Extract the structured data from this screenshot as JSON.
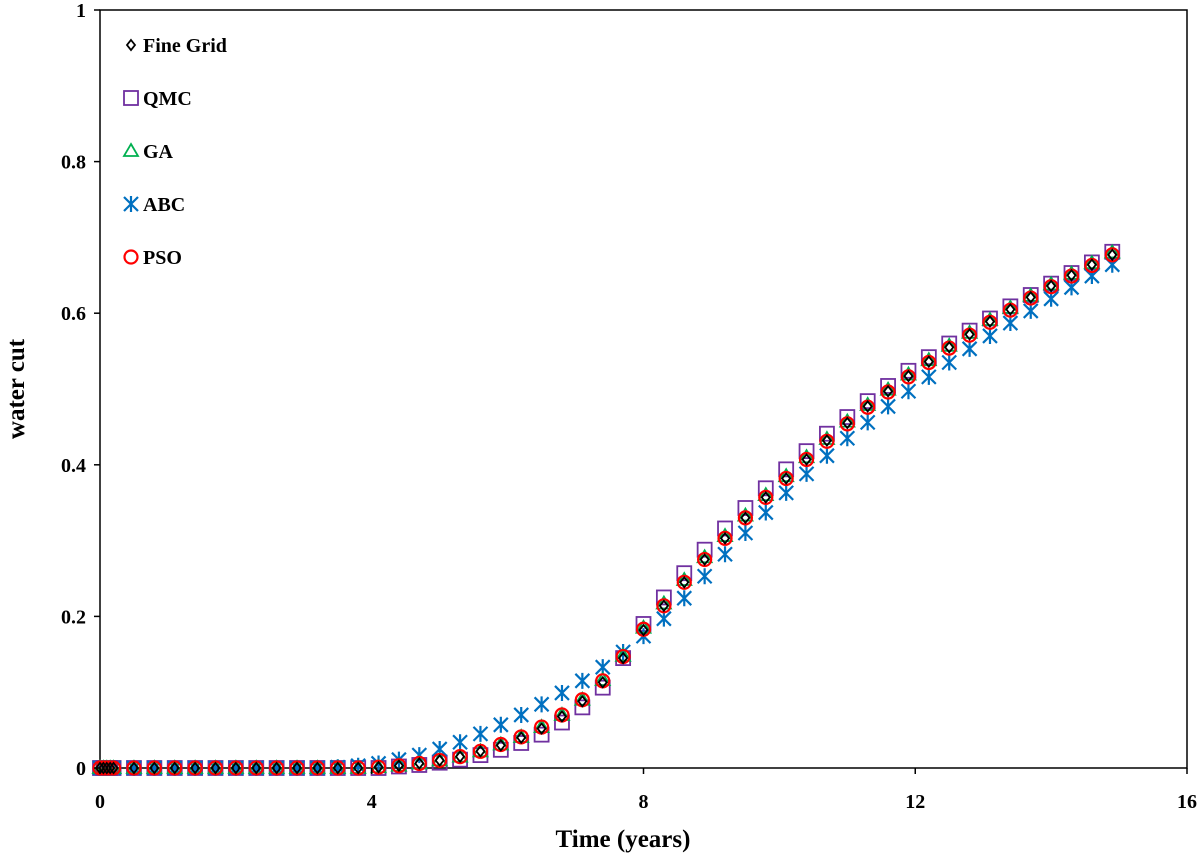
{
  "chart_data": {
    "type": "scatter",
    "title": "",
    "xlabel": "Time (years)",
    "ylabel": "water cut",
    "xlim": [
      0,
      16
    ],
    "ylim": [
      0,
      1
    ],
    "xticks": [
      0,
      4,
      8,
      12,
      16
    ],
    "yticks": [
      0,
      0.2,
      0.4,
      0.6,
      0.8,
      1
    ],
    "ytick_labels": [
      "0",
      "0.2",
      "0.4",
      "0.6",
      "0.8",
      "1"
    ],
    "grid": false,
    "legend_position": "top-left",
    "x": [
      0.0,
      0.05,
      0.1,
      0.15,
      0.2,
      0.5,
      0.8,
      1.1,
      1.4,
      1.7,
      2.0,
      2.3,
      2.6,
      2.9,
      3.2,
      3.5,
      3.8,
      4.1,
      4.4,
      4.7,
      5.0,
      5.3,
      5.6,
      5.9,
      6.2,
      6.5,
      6.8,
      7.1,
      7.4,
      7.7,
      8.0,
      8.3,
      8.6,
      8.9,
      9.2,
      9.5,
      9.8,
      10.1,
      10.4,
      10.7,
      11.0,
      11.3,
      11.6,
      11.9,
      12.2,
      12.5,
      12.8,
      13.1,
      13.4,
      13.7,
      14.0,
      14.3,
      14.6,
      14.9
    ],
    "series": [
      {
        "name": "Fine Grid",
        "marker": "diamond",
        "color": "#000000",
        "values": [
          0,
          0,
          0,
          0,
          0,
          0,
          0,
          0,
          0,
          0,
          0,
          0,
          0,
          0,
          0,
          0,
          0,
          0.001,
          0.003,
          0.006,
          0.01,
          0.015,
          0.022,
          0.03,
          0.04,
          0.052,
          0.068,
          0.088,
          0.113,
          0.145,
          0.182,
          0.214,
          0.245,
          0.275,
          0.303,
          0.33,
          0.357,
          0.382,
          0.407,
          0.432,
          0.455,
          0.477,
          0.497,
          0.517,
          0.536,
          0.555,
          0.572,
          0.589,
          0.605,
          0.621,
          0.636,
          0.65,
          0.664,
          0.677
        ]
      },
      {
        "name": "QMC",
        "marker": "square",
        "color": "#7030A0",
        "values": [
          0,
          0,
          0,
          0,
          0,
          0,
          0,
          0,
          0,
          0,
          0,
          0,
          0,
          0,
          0,
          0,
          0,
          0,
          0.002,
          0.004,
          0.007,
          0.011,
          0.017,
          0.024,
          0.033,
          0.044,
          0.06,
          0.08,
          0.106,
          0.145,
          0.19,
          0.225,
          0.257,
          0.288,
          0.316,
          0.343,
          0.369,
          0.394,
          0.418,
          0.441,
          0.463,
          0.484,
          0.504,
          0.524,
          0.542,
          0.56,
          0.577,
          0.593,
          0.609,
          0.624,
          0.639,
          0.653,
          0.667,
          0.681
        ]
      },
      {
        "name": "GA",
        "marker": "triangle",
        "color": "#00B050",
        "values": [
          0,
          0,
          0,
          0,
          0,
          0,
          0,
          0,
          0,
          0,
          0,
          0,
          0,
          0,
          0,
          0,
          0,
          0.001,
          0.003,
          0.006,
          0.01,
          0.015,
          0.022,
          0.031,
          0.041,
          0.054,
          0.07,
          0.09,
          0.116,
          0.148,
          0.185,
          0.217,
          0.248,
          0.278,
          0.306,
          0.333,
          0.36,
          0.385,
          0.41,
          0.434,
          0.457,
          0.479,
          0.499,
          0.519,
          0.538,
          0.557,
          0.574,
          0.591,
          0.607,
          0.623,
          0.638,
          0.652,
          0.666,
          0.68
        ]
      },
      {
        "name": "ABC",
        "marker": "asterisk",
        "color": "#0070C0",
        "values": [
          0,
          0,
          0,
          0,
          0,
          0,
          0,
          0,
          0,
          0,
          0,
          0,
          0,
          0,
          0,
          0.001,
          0.003,
          0.006,
          0.011,
          0.017,
          0.025,
          0.034,
          0.045,
          0.057,
          0.07,
          0.084,
          0.099,
          0.115,
          0.133,
          0.153,
          0.174,
          0.197,
          0.224,
          0.253,
          0.282,
          0.31,
          0.337,
          0.363,
          0.388,
          0.412,
          0.435,
          0.456,
          0.477,
          0.497,
          0.516,
          0.535,
          0.553,
          0.57,
          0.587,
          0.603,
          0.619,
          0.634,
          0.649,
          0.664
        ]
      },
      {
        "name": "PSO",
        "marker": "circle",
        "color": "#FF0000",
        "values": [
          0,
          0,
          0,
          0,
          0,
          0,
          0,
          0,
          0,
          0,
          0,
          0,
          0,
          0,
          0,
          0,
          0,
          0.001,
          0.003,
          0.006,
          0.01,
          0.015,
          0.022,
          0.031,
          0.041,
          0.054,
          0.07,
          0.09,
          0.115,
          0.147,
          0.183,
          0.214,
          0.245,
          0.275,
          0.303,
          0.33,
          0.357,
          0.382,
          0.407,
          0.431,
          0.454,
          0.476,
          0.496,
          0.516,
          0.535,
          0.554,
          0.571,
          0.588,
          0.604,
          0.62,
          0.635,
          0.649,
          0.663,
          0.677
        ]
      }
    ]
  }
}
